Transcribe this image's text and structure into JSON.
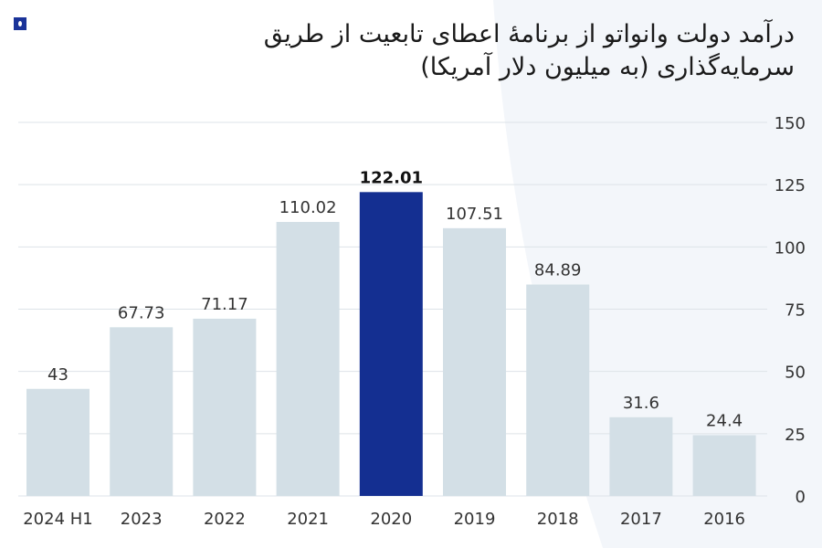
{
  "title": "درآمد دولت وانواتو از برنامهٔ اعطای تابعیت از طریق سرمایه‌گذاری (به میلیون دلار آمریکا)",
  "chart_data": {
    "type": "bar",
    "title": "درآمد دولت وانواتو از برنامهٔ اعطای تابعیت از طریق سرمایه‌گذاری (به میلیون دلار آمریکا)",
    "categories": [
      "2024 H1",
      "2023",
      "2022",
      "2021",
      "2020",
      "2019",
      "2018",
      "2017",
      "2016"
    ],
    "values": [
      43,
      67.73,
      71.17,
      110.02,
      122.01,
      107.51,
      84.89,
      31.6,
      24.4
    ],
    "labels": [
      "43",
      "67.73",
      "71.17",
      "110.02",
      "122.01",
      "107.51",
      "84.89",
      "31.6",
      "24.4"
    ],
    "highlight_index": 4,
    "ylim": [
      0,
      150
    ],
    "yticks": [
      "0",
      "25",
      "50",
      "75",
      "100",
      "125",
      "150"
    ],
    "grid": true,
    "yaxis_position": "right",
    "colors": {
      "bar": "#d3dfe6",
      "highlight": "#142f91",
      "grid": "#dde3e8",
      "text": "#333333"
    }
  }
}
